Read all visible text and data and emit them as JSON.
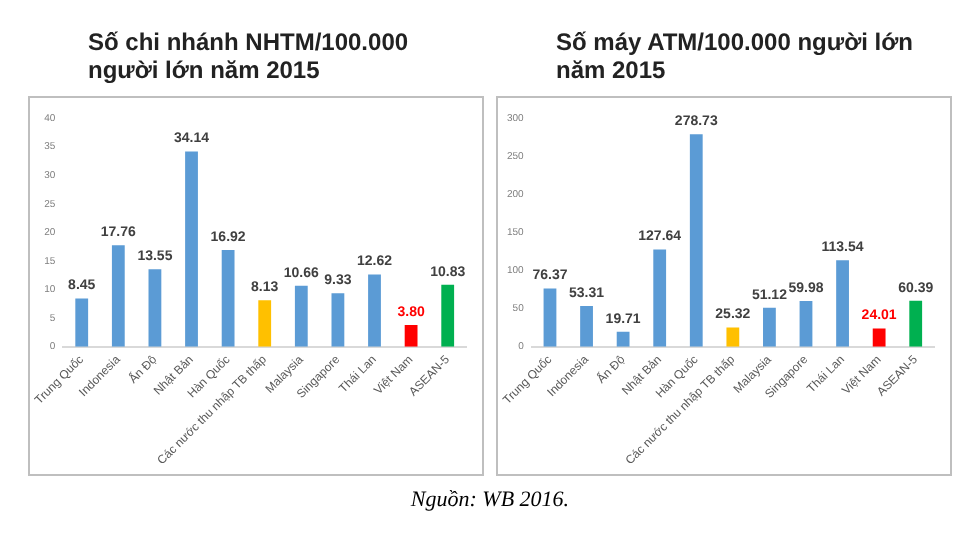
{
  "chart_data": [
    {
      "type": "bar",
      "title": "Số chi nhánh NHTM/100.000 người lớn năm 2015",
      "categories": [
        "Trung Quốc",
        "Indonesia",
        "Ấn Độ",
        "Nhật Bản",
        "Hàn Quốc",
        "Các nước thu nhập TB thấp",
        "Malaysia",
        "Singapore",
        "Thái Lan",
        "Việt Nam",
        "ASEAN-5"
      ],
      "values": [
        8.45,
        17.76,
        13.55,
        34.14,
        16.92,
        8.13,
        10.66,
        9.33,
        12.62,
        3.8,
        10.83
      ],
      "value_labels": [
        "8.45",
        "17.76",
        "13.55",
        "34.14",
        "16.92",
        "8.13",
        "10.66",
        "9.33",
        "12.62",
        "3.80",
        "10.83"
      ],
      "colors": [
        "#5b9bd5",
        "#5b9bd5",
        "#5b9bd5",
        "#5b9bd5",
        "#5b9bd5",
        "#ffc000",
        "#5b9bd5",
        "#5b9bd5",
        "#5b9bd5",
        "#ff0000",
        "#00b050"
      ],
      "ylim": [
        0,
        40
      ],
      "yticks": [
        0,
        5,
        10,
        15,
        20,
        25,
        30,
        35,
        40
      ]
    },
    {
      "type": "bar",
      "title": "Số máy ATM/100.000 người lớn năm 2015",
      "categories": [
        "Trung Quốc",
        "Indonesia",
        "Ấn Độ",
        "Nhật Bản",
        "Hàn Quốc",
        "Các nước thu nhập TB thấp",
        "Malaysia",
        "Singapore",
        "Thái Lan",
        "Việt Nam",
        "ASEAN-5"
      ],
      "values": [
        76.37,
        53.31,
        19.71,
        127.64,
        278.73,
        25.32,
        51.12,
        59.98,
        113.54,
        24.01,
        60.39
      ],
      "value_labels": [
        "76.37",
        "53.31",
        "19.71",
        "127.64",
        "278.73",
        "25.32",
        "51.12",
        "59.98",
        "113.54",
        "24.01",
        "60.39"
      ],
      "colors": [
        "#5b9bd5",
        "#5b9bd5",
        "#5b9bd5",
        "#5b9bd5",
        "#5b9bd5",
        "#ffc000",
        "#5b9bd5",
        "#5b9bd5",
        "#5b9bd5",
        "#ff0000",
        "#00b050"
      ],
      "ylim": [
        0,
        300
      ],
      "yticks": [
        0,
        50,
        100,
        150,
        200,
        250,
        300
      ],
      "annotations": [
        "Nguồn: WB 2016."
      ]
    }
  ]
}
